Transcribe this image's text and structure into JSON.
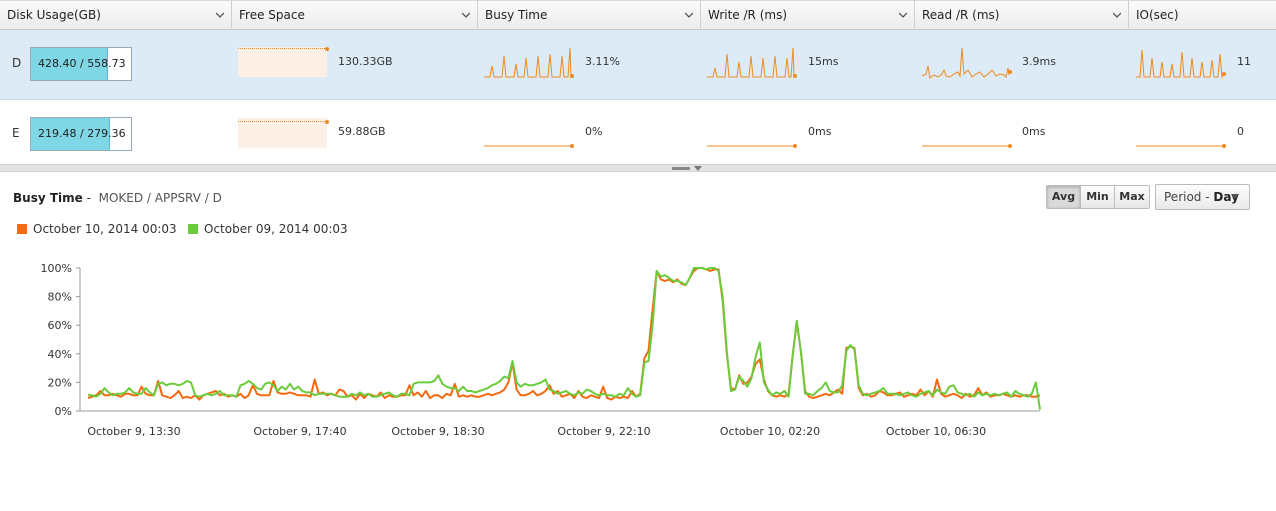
{
  "columns": [
    {
      "label": "Disk Usage(GB)"
    },
    {
      "label": "Free Space"
    },
    {
      "label": "Busy Time"
    },
    {
      "label": "Write /R (ms)"
    },
    {
      "label": "Read /R (ms)"
    },
    {
      "label": "IO(sec)"
    }
  ],
  "rows": [
    {
      "drive": "D",
      "usage_text": "428.40 / 558.73",
      "usage_fraction": 0.767,
      "free_space": "130.33GB",
      "busy": "3.11%",
      "write": "15ms",
      "read": "3.9ms",
      "io": "11",
      "selected": true
    },
    {
      "drive": "E",
      "usage_text": "219.48 / 279.36",
      "usage_fraction": 0.786,
      "free_space": "59.88GB",
      "busy": "0%",
      "write": "0ms",
      "read": "0ms",
      "io": "0",
      "selected": false
    }
  ],
  "detail": {
    "title": "Busy Time",
    "separator": "-",
    "path": "MOKED / APPSRV / D",
    "buttons": {
      "avg": "Avg",
      "min": "Min",
      "max": "Max"
    },
    "period_label": "Period - ",
    "period_value": "Day"
  },
  "colors": {
    "series1": "#f5690f",
    "series2": "#6ccb3c",
    "spark": "#f08a1c",
    "selected_row": "#ddebf7"
  },
  "chart_data": {
    "type": "line",
    "ylim": [
      0,
      100
    ],
    "yticks": [
      "0%",
      "20%",
      "40%",
      "60%",
      "80%",
      "100%"
    ],
    "xticks": [
      "October 9, 13:30",
      "October 9, 17:40",
      "October 9, 18:30",
      "October 9, 22:10",
      "October 10, 02:20",
      "October 10, 06:30"
    ],
    "series": [
      {
        "name": "October 10, 2014 00:03",
        "values": [
          9,
          10,
          11,
          14,
          11,
          11,
          12,
          11,
          10,
          12,
          12,
          11,
          11,
          17,
          12,
          11,
          11,
          21,
          11,
          10,
          9,
          11,
          14,
          9,
          10,
          9,
          11,
          8,
          11,
          12,
          13,
          14,
          11,
          12,
          10,
          11,
          10,
          12,
          9,
          11,
          18,
          12,
          11,
          11,
          11,
          21,
          13,
          12,
          12,
          13,
          12,
          11,
          11,
          11,
          10,
          22,
          12,
          13,
          11,
          12,
          11,
          15,
          14,
          10,
          11,
          8,
          12,
          9,
          12,
          11,
          10,
          13,
          9,
          11,
          10,
          10,
          11,
          11,
          18,
          11,
          13,
          10,
          14,
          9,
          11,
          11,
          9,
          12,
          11,
          19,
          10,
          11,
          10,
          11,
          10,
          10,
          11,
          12,
          11,
          12,
          13,
          15,
          20,
          34,
          15,
          11,
          11,
          12,
          14,
          11,
          12,
          14,
          18,
          12,
          14,
          10,
          11,
          12,
          9,
          14,
          10,
          9,
          11,
          10,
          9,
          17,
          9,
          8,
          10,
          9,
          10,
          9,
          14,
          10,
          12,
          37,
          42,
          71,
          98,
          92,
          91,
          92,
          90,
          92,
          89,
          88,
          93,
          98,
          100,
          100,
          99,
          98,
          99,
          99,
          77,
          40,
          16,
          15,
          25,
          19,
          20,
          24,
          33,
          36,
          22,
          14,
          11,
          10,
          11,
          10,
          12,
          39,
          62,
          41,
          14,
          10,
          9,
          10,
          11,
          12,
          11,
          13,
          15,
          12,
          44,
          45,
          44,
          16,
          11,
          12,
          10,
          11,
          14,
          13,
          11,
          11,
          12,
          13,
          10,
          11,
          12,
          11,
          15,
          11,
          14,
          10,
          22,
          12,
          10,
          11,
          12,
          11,
          9,
          12,
          10,
          11,
          16,
          11,
          13,
          10,
          11,
          11,
          12,
          11,
          10,
          11,
          10,
          11,
          11,
          10,
          10,
          11
        ]
      },
      {
        "name": "October 09, 2014 00:03",
        "values": [
          11,
          11,
          10,
          12,
          16,
          13,
          11,
          12,
          12,
          13,
          16,
          13,
          12,
          12,
          16,
          13,
          11,
          19,
          20,
          18,
          19,
          19,
          18,
          19,
          21,
          20,
          11,
          10,
          11,
          12,
          11,
          12,
          14,
          11,
          11,
          11,
          10,
          18,
          19,
          21,
          19,
          16,
          15,
          19,
          20,
          18,
          14,
          17,
          15,
          19,
          15,
          17,
          14,
          13,
          13,
          11,
          12,
          12,
          12,
          12,
          11,
          10,
          10,
          10,
          12,
          11,
          13,
          11,
          12,
          10,
          10,
          11,
          12,
          13,
          11,
          10,
          12,
          12,
          11,
          19,
          20,
          20,
          20,
          20,
          21,
          25,
          19,
          17,
          16,
          16,
          14,
          17,
          14,
          14,
          13,
          14,
          15,
          16,
          18,
          19,
          21,
          24,
          23,
          35,
          20,
          17,
          19,
          18,
          18,
          19,
          20,
          22,
          15,
          14,
          12,
          13,
          14,
          12,
          11,
          13,
          12,
          15,
          14,
          12,
          11,
          12,
          11,
          11,
          10,
          12,
          11,
          16,
          12,
          10,
          11,
          34,
          35,
          60,
          98,
          94,
          95,
          93,
          91,
          91,
          90,
          88,
          93,
          100,
          100,
          100,
          99,
          100,
          100,
          98,
          80,
          42,
          14,
          15,
          24,
          21,
          17,
          23,
          38,
          48,
          20,
          15,
          11,
          13,
          12,
          14,
          10,
          39,
          63,
          41,
          12,
          12,
          11,
          14,
          16,
          20,
          14,
          13,
          13,
          18,
          42,
          46,
          43,
          18,
          12,
          11,
          12,
          13,
          14,
          16,
          12,
          12,
          12,
          11,
          12,
          13,
          11,
          10,
          12,
          13,
          14,
          11,
          15,
          13,
          12,
          17,
          18,
          13,
          12,
          11,
          12,
          10,
          13,
          11,
          12,
          11,
          12,
          11,
          12,
          13,
          10,
          14,
          12,
          11,
          10,
          12,
          20,
          1
        ]
      }
    ]
  }
}
